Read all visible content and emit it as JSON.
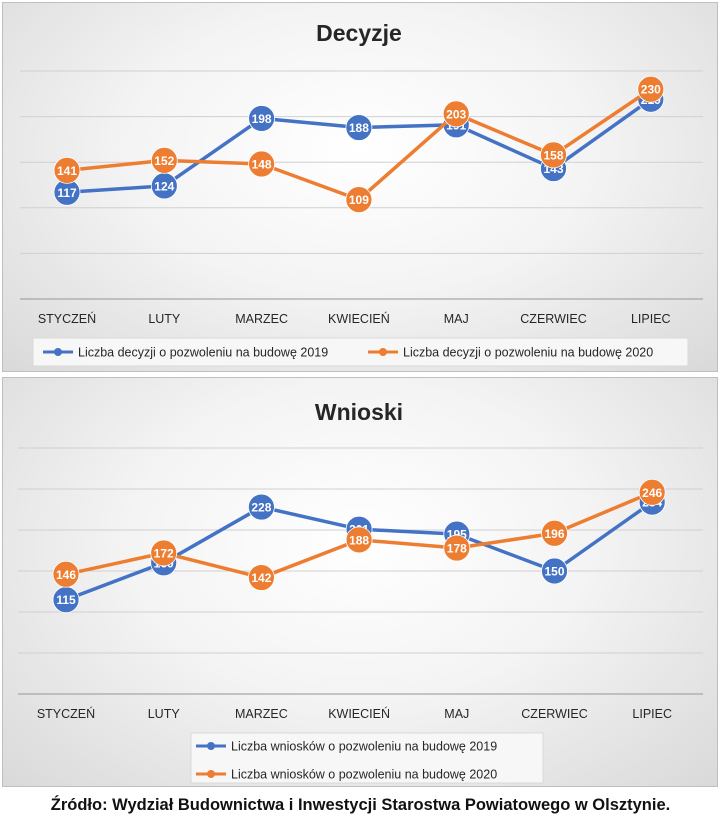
{
  "chart_data": [
    {
      "type": "line",
      "title": "Decyzje",
      "categories": [
        "STYCZEŃ",
        "LUTY",
        "MARZEC",
        "KWIECIEŃ",
        "MAJ",
        "CZERWIEC",
        "LIPIEC"
      ],
      "series": [
        {
          "name": "Liczba decyzji o pozwoleniu na budowę 2019",
          "color": "#4472c4",
          "values": [
            117,
            124,
            198,
            188,
            191,
            143,
            219
          ]
        },
        {
          "name": "Liczba decyzji o pozwoleniu na budowę 2020",
          "color": "#ed7d31",
          "values": [
            141,
            152,
            148,
            109,
            203,
            158,
            230
          ]
        }
      ],
      "ylim": [
        0,
        250
      ],
      "grid": true,
      "legend": "bottom"
    },
    {
      "type": "line",
      "title": "Wnioski",
      "categories": [
        "STYCZEŃ",
        "LUTY",
        "MARZEC",
        "KWIECIEŃ",
        "MAJ",
        "CZERWIEC",
        "LIPIEC"
      ],
      "series": [
        {
          "name": "Liczba wniosków o pozwoleniu na budowę 2019",
          "color": "#4472c4",
          "values": [
            115,
            160,
            228,
            201,
            195,
            150,
            234
          ]
        },
        {
          "name": "Liczba wniosków o pozwoleniu na budowę 2020",
          "color": "#ed7d31",
          "values": [
            146,
            172,
            142,
            188,
            178,
            196,
            246
          ]
        }
      ],
      "ylim": [
        0,
        300
      ],
      "grid": true,
      "legend": "bottom"
    }
  ],
  "footer": "Źródło: Wydział Budownictwa i Inwestycji Starostwa Powiatowego w Olsztynie."
}
